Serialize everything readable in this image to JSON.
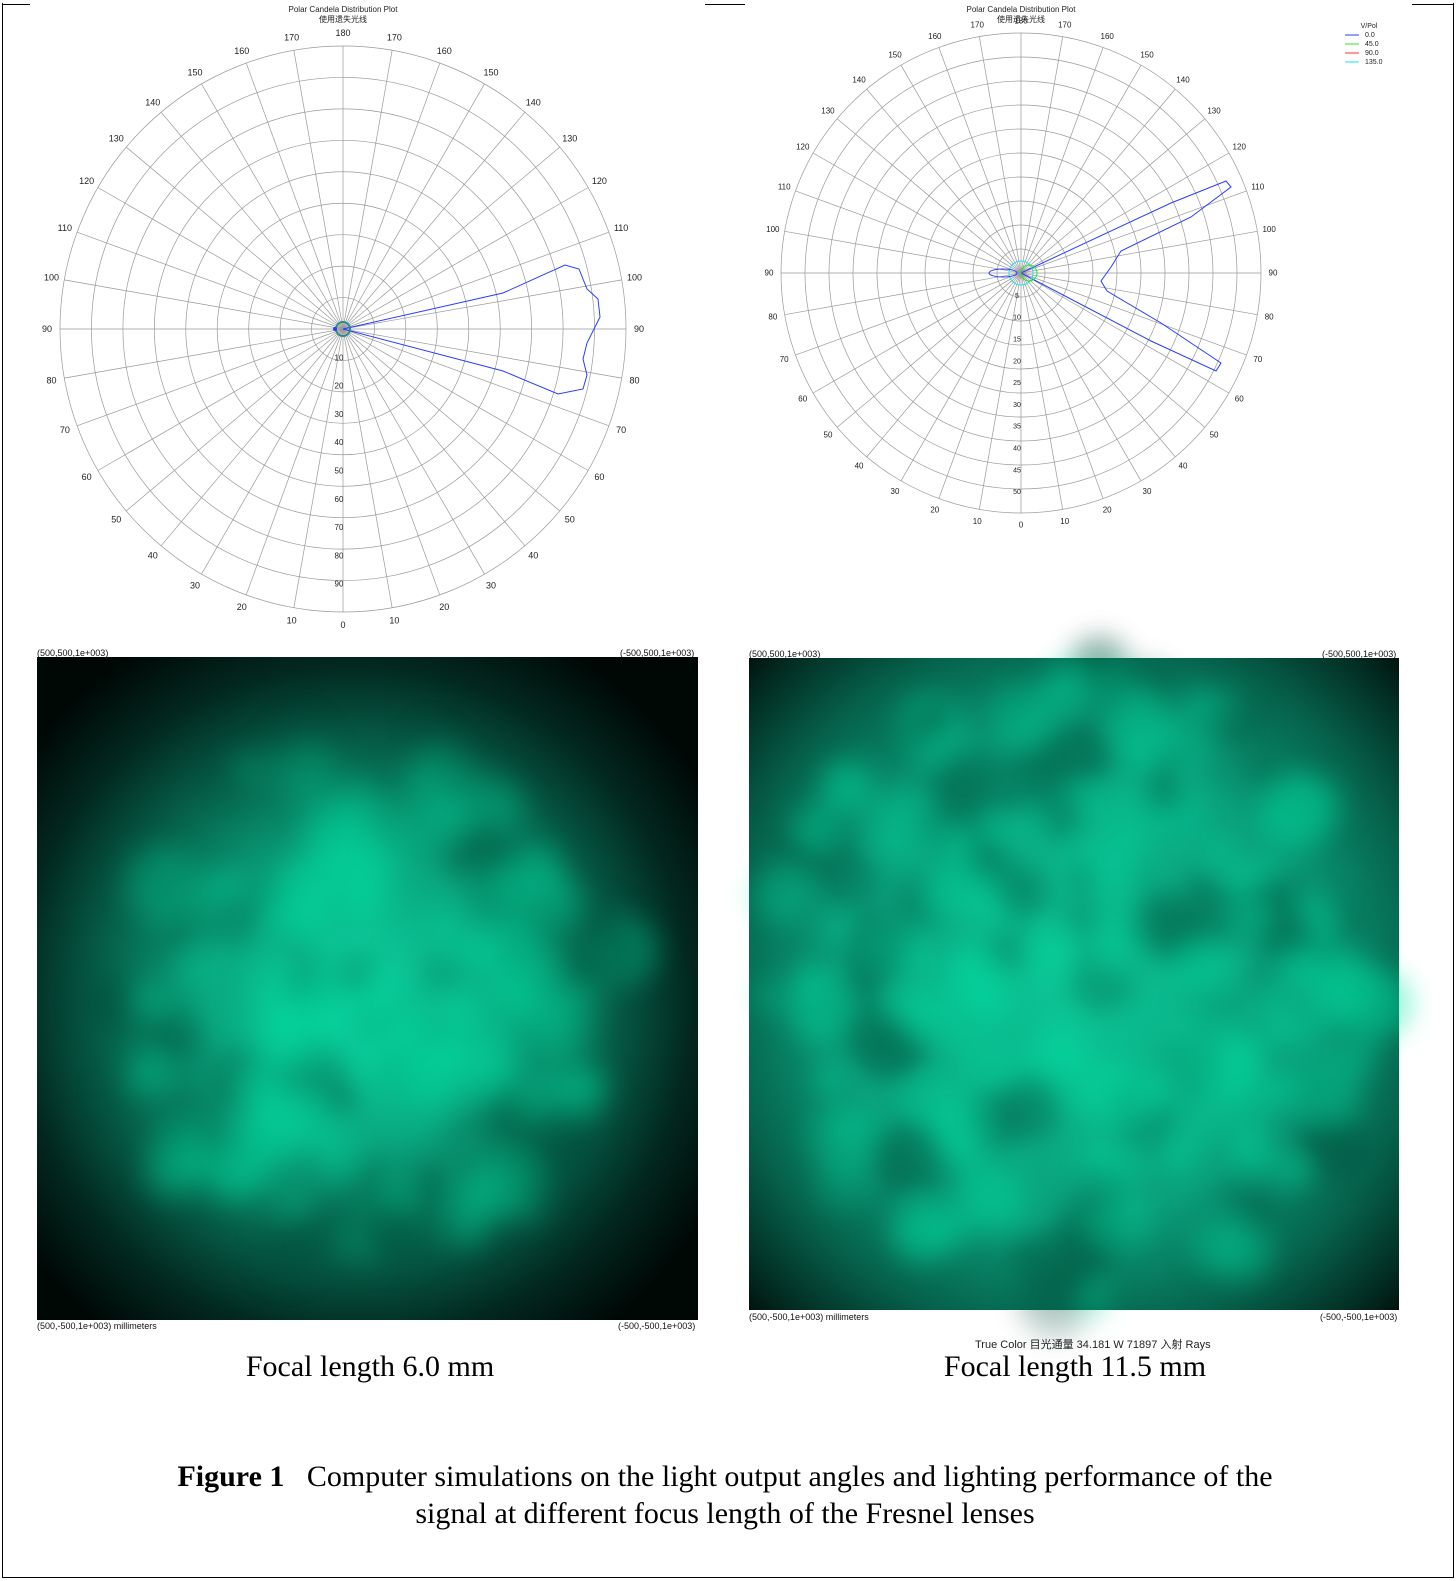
{
  "panels": [
    {
      "polar": {
        "title": "Polar Candela Distribution Plot",
        "subtitle": "使用遗失光线",
        "angle_labels_right": [
          "180",
          "170",
          "160",
          "150",
          "140",
          "130",
          "120",
          "110",
          "100",
          "90",
          "80",
          "70",
          "60",
          "50",
          "40",
          "30",
          "20",
          "10",
          "0"
        ],
        "angle_labels_left": [
          "170",
          "160",
          "150",
          "140",
          "130",
          "120",
          "110",
          "100",
          "90",
          "80",
          "70",
          "60",
          "50",
          "40",
          "30",
          "20",
          "10"
        ],
        "radial_labels": [
          "10",
          "20",
          "30",
          "40",
          "50",
          "60",
          "70",
          "80",
          "90"
        ],
        "legend": null
      },
      "beam": {
        "corner_tl": "(500,500,1e+003)",
        "corner_tr": "(-500,500,1e+003)",
        "corner_bl": "(500,-500,1e+003) millimeters",
        "corner_br": "(-500,-500,1e+003)"
      },
      "caption": "Focal length 6.0 mm"
    },
    {
      "polar": {
        "title": "Polar Candela Distribution Plot",
        "subtitle": "使用遗失光线",
        "angle_labels_right": [
          "180",
          "170",
          "160",
          "150",
          "140",
          "130",
          "120",
          "110",
          "100",
          "90",
          "80",
          "70",
          "60",
          "50",
          "40",
          "30",
          "20",
          "10",
          "0"
        ],
        "angle_labels_left": [
          "170",
          "160",
          "150",
          "140",
          "130",
          "120",
          "110",
          "100",
          "90",
          "80",
          "70",
          "60",
          "50",
          "40",
          "30",
          "20",
          "10"
        ],
        "radial_labels": [
          "5",
          "10",
          "15",
          "20",
          "25",
          "30",
          "35",
          "40",
          "45",
          "50"
        ],
        "legend": {
          "title": "V/Pol",
          "entries": [
            {
              "label": "0.0",
              "color": "#2a3cff"
            },
            {
              "label": "45.0",
              "color": "#33dd33"
            },
            {
              "label": "90.0",
              "color": "#ff3333"
            },
            {
              "label": "135.0",
              "color": "#22e0e0"
            }
          ]
        }
      },
      "beam": {
        "corner_tl": "(500,500,1e+003)",
        "corner_tr": "(-500,500,1e+003)",
        "corner_bl": "(500,-500,1e+003) millimeters",
        "corner_br": "(-500,-500,1e+003)",
        "footer_truncated": "True Color 目光通量 34.181 W 71897 入射 Rays"
      },
      "caption": "Focal length 11.5 mm"
    }
  ],
  "figure": {
    "label": "Figure 1",
    "text": "Computer simulations on the light output angles and lighting performance of the signal at different focus length of the Fresnel lenses"
  },
  "colors": {
    "beam_glow": "#00e8a8",
    "beam_mid": "#0fa07c",
    "beam_dark": "#001410",
    "curve_blue": "#2a3cff"
  }
}
